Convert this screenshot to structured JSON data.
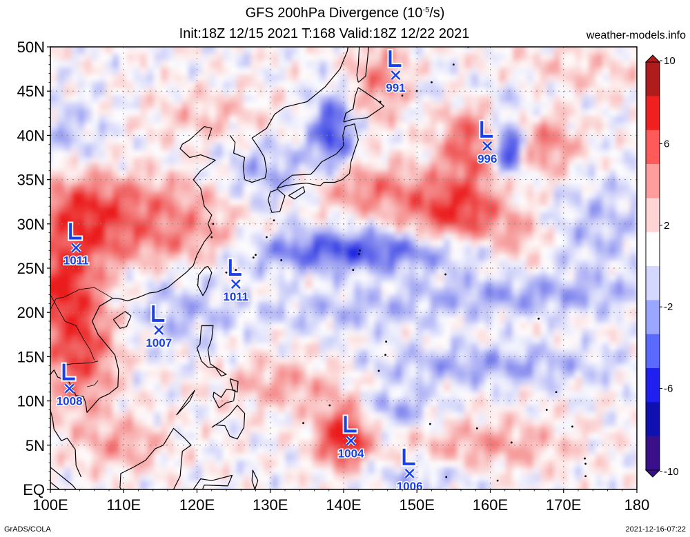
{
  "header": {
    "title_prefix": "GFS 200hPa Divergence (10",
    "title_exp": "-5",
    "title_suffix": "/s)",
    "subtitle": "Init:18Z 12/15 2021 T:168 Valid:18Z 12/22 2021",
    "site": "weather-models.info"
  },
  "footer": {
    "left": "GrADS/COLA",
    "right": "2021-12-16-07:22"
  },
  "axes": {
    "lat_labels": [
      "50N",
      "45N",
      "40N",
      "35N",
      "30N",
      "25N",
      "20N",
      "15N",
      "10N",
      "5N",
      "EQ"
    ],
    "lat_values": [
      50,
      45,
      40,
      35,
      30,
      25,
      20,
      15,
      10,
      5,
      0
    ],
    "lon_labels": [
      "100E",
      "110E",
      "120E",
      "130E",
      "140E",
      "150E",
      "160E",
      "170E",
      "180"
    ],
    "lon_values": [
      100,
      110,
      120,
      130,
      140,
      150,
      160,
      170,
      180
    ],
    "lat_range": [
      0,
      50
    ],
    "lon_range": [
      100,
      180
    ]
  },
  "colorbar": {
    "labels": [
      "10",
      "6",
      "2",
      "-2",
      "-6",
      "-10"
    ],
    "values": [
      10,
      6,
      2,
      -2,
      -6,
      -10
    ],
    "colors_top_to_bottom": [
      "#b01c1c",
      "#ee2020",
      "#ff5a5a",
      "#ff9d9d",
      "#ffd4d4",
      "#ffffff",
      "#d4d8ff",
      "#9aa6ff",
      "#5a6aff",
      "#2020ee",
      "#1010b0",
      "#3a0f8a"
    ]
  },
  "colors": {
    "pos": "#e8201e",
    "neg": "#1c28e0",
    "low_marker": "#1a3fe6"
  },
  "lows": [
    {
      "lon": 103.5,
      "lat": 27.3,
      "pressure": "1011"
    },
    {
      "lon": 125.3,
      "lat": 23.2,
      "pressure": "1011"
    },
    {
      "lon": 114.8,
      "lat": 18.0,
      "pressure": "1007"
    },
    {
      "lon": 102.6,
      "lat": 11.4,
      "pressure": "1008"
    },
    {
      "lon": 147.1,
      "lat": 46.8,
      "pressure": "991"
    },
    {
      "lon": 159.6,
      "lat": 38.8,
      "pressure": "996"
    },
    {
      "lon": 141.0,
      "lat": 5.5,
      "pressure": "1004"
    },
    {
      "lon": 149.0,
      "lat": 1.8,
      "pressure": "1006"
    }
  ],
  "divergence_features": [
    {
      "type": "pos",
      "lon": 112,
      "lat": 32,
      "sx": 10,
      "sy": 2.5,
      "amp": 4
    },
    {
      "type": "pos",
      "lon": 104,
      "lat": 30,
      "sx": 4,
      "sy": 4,
      "amp": 4
    },
    {
      "type": "pos",
      "lon": 104,
      "lat": 16,
      "sx": 3.5,
      "sy": 5,
      "amp": 6
    },
    {
      "type": "pos",
      "lon": 101,
      "lat": 23,
      "sx": 3,
      "sy": 3,
      "amp": 5
    },
    {
      "type": "pos",
      "lon": 118,
      "lat": 27.5,
      "sx": 9,
      "sy": 1.8,
      "amp": 4
    },
    {
      "type": "pos",
      "lon": 143,
      "lat": 34,
      "sx": 6,
      "sy": 2,
      "amp": 4
    },
    {
      "type": "pos",
      "lon": 155,
      "lat": 31,
      "sx": 5,
      "sy": 2.5,
      "amp": 6
    },
    {
      "type": "pos",
      "lon": 157,
      "lat": 39,
      "sx": 3,
      "sy": 4,
      "amp": 5
    },
    {
      "type": "pos",
      "lon": 168,
      "lat": 39,
      "sx": 3,
      "sy": 2.5,
      "amp": 4
    },
    {
      "type": "pos",
      "lon": 164,
      "lat": 28,
      "sx": 3,
      "sy": 2,
      "amp": 3
    },
    {
      "type": "pos",
      "lon": 140,
      "lat": 6,
      "sx": 2.5,
      "sy": 2.5,
      "amp": 8
    },
    {
      "type": "pos",
      "lon": 132,
      "lat": 12,
      "sx": 6,
      "sy": 2,
      "amp": 3
    },
    {
      "type": "pos",
      "lon": 160,
      "lat": 5,
      "sx": 8,
      "sy": 2,
      "amp": 3
    },
    {
      "type": "pos",
      "lon": 145,
      "lat": 46,
      "sx": 3,
      "sy": 3,
      "amp": 4
    },
    {
      "type": "pos",
      "lon": 170,
      "lat": 47,
      "sx": 8,
      "sy": 2,
      "amp": 2
    },
    {
      "type": "pos",
      "lon": 122,
      "lat": 42,
      "sx": 6,
      "sy": 2,
      "amp": 2
    },
    {
      "type": "pos",
      "lon": 110,
      "lat": 5,
      "sx": 4,
      "sy": 2,
      "amp": 3
    },
    {
      "type": "neg",
      "lon": 140,
      "lat": 27,
      "sx": 13,
      "sy": 1.6,
      "amp": 6
    },
    {
      "type": "neg",
      "lon": 138.5,
      "lat": 40.5,
      "sx": 2,
      "sy": 3,
      "amp": 6
    },
    {
      "type": "neg",
      "lon": 162.5,
      "lat": 38.5,
      "sx": 1.4,
      "sy": 2,
      "amp": 8
    },
    {
      "type": "neg",
      "lon": 130,
      "lat": 35,
      "sx": 5,
      "sy": 3,
      "amp": 3
    },
    {
      "type": "neg",
      "lon": 165,
      "lat": 22,
      "sx": 12,
      "sy": 1.5,
      "amp": 3
    },
    {
      "type": "neg",
      "lon": 140,
      "lat": 20,
      "sx": 10,
      "sy": 1.5,
      "amp": 2
    },
    {
      "type": "neg",
      "lon": 160,
      "lat": 14,
      "sx": 12,
      "sy": 1.5,
      "amp": 3
    },
    {
      "type": "neg",
      "lon": 147,
      "lat": 9,
      "sx": 4,
      "sy": 1.5,
      "amp": 3
    },
    {
      "type": "neg",
      "lon": 118,
      "lat": 20,
      "sx": 5,
      "sy": 3,
      "amp": 2
    },
    {
      "type": "neg",
      "lon": 102,
      "lat": 40,
      "sx": 4,
      "sy": 3,
      "amp": 2
    },
    {
      "type": "neg",
      "lon": 160,
      "lat": 45,
      "sx": 8,
      "sy": 2,
      "amp": 2
    },
    {
      "type": "neg",
      "lon": 175,
      "lat": 30,
      "sx": 5,
      "sy": 4,
      "amp": 2
    },
    {
      "type": "neg",
      "lon": 150,
      "lat": 1.5,
      "sx": 6,
      "sy": 1.2,
      "amp": 2
    }
  ]
}
